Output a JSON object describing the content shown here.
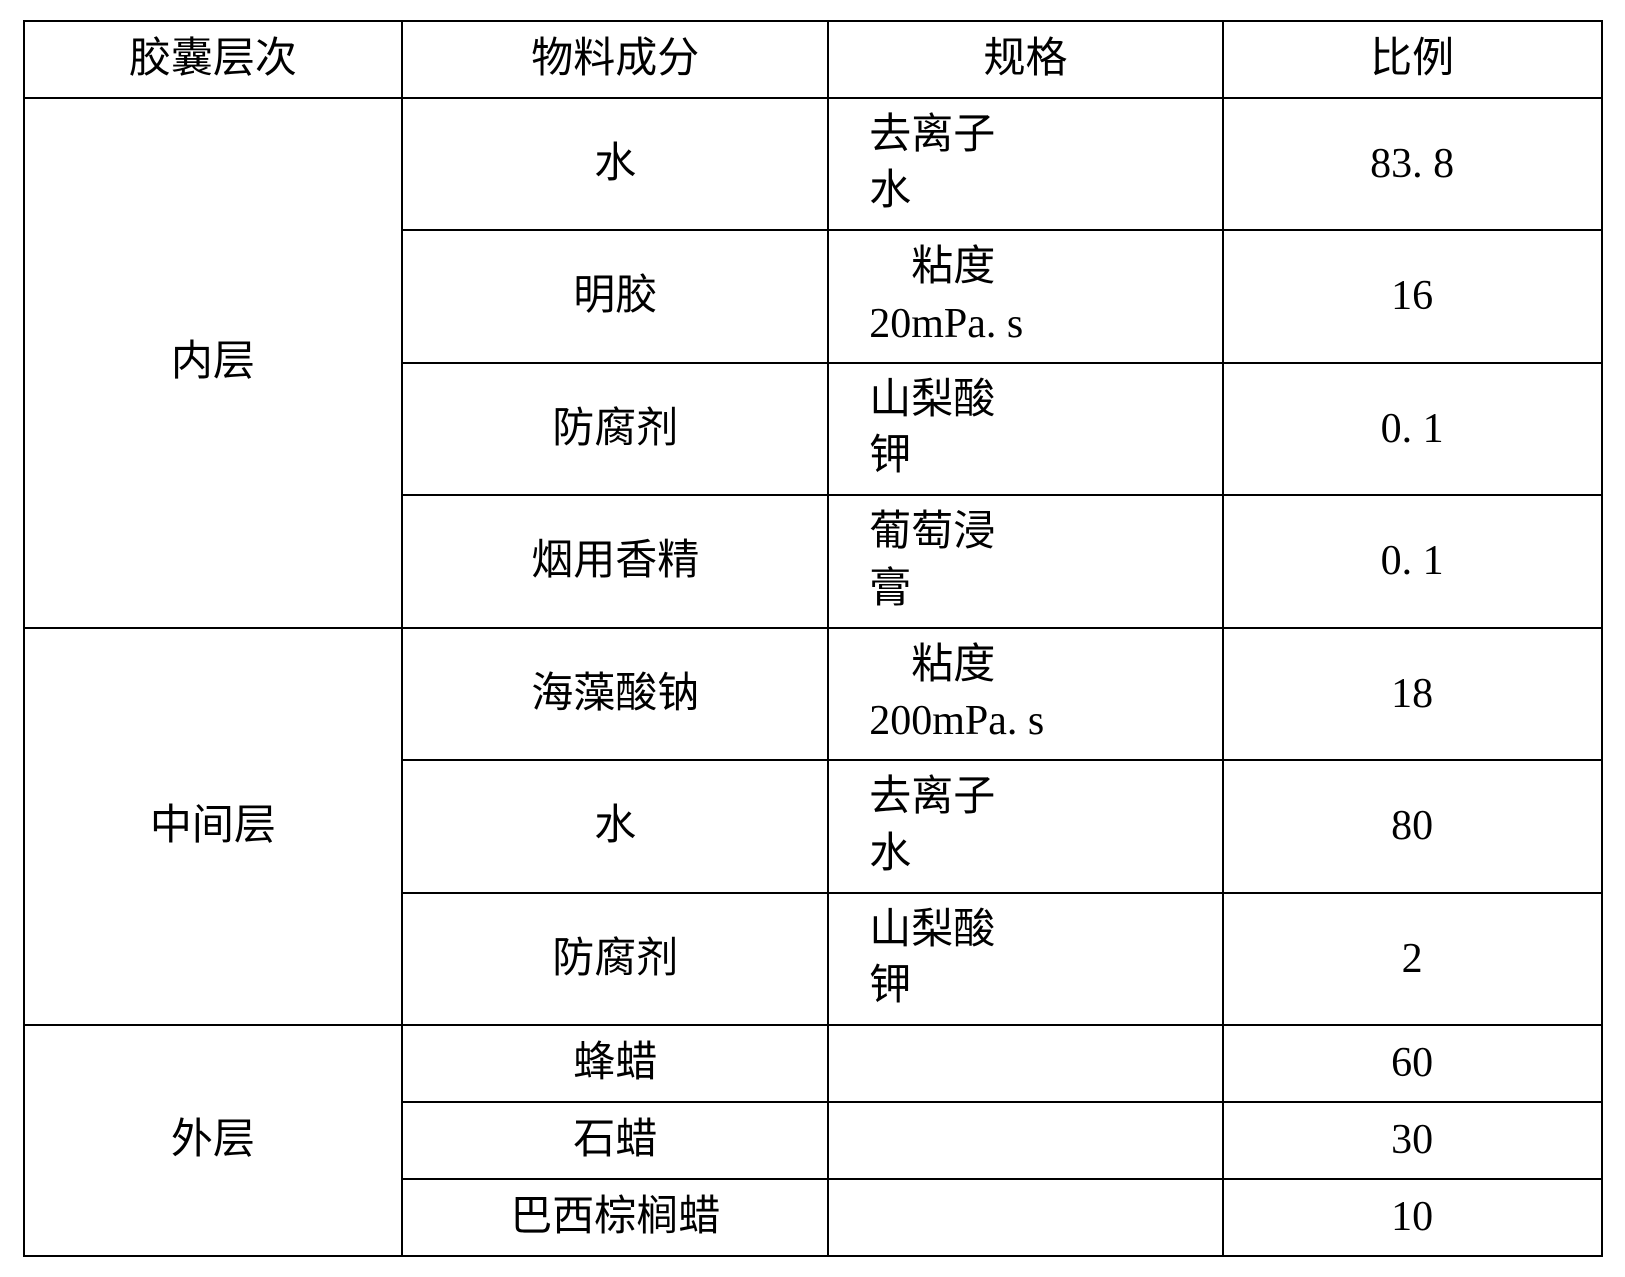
{
  "table": {
    "headers": {
      "layer": "胶囊层次",
      "material": "物料成分",
      "spec": "规格",
      "ratio": "比例"
    },
    "border_color": "#000000",
    "background_color": "#ffffff",
    "text_color": "#000000",
    "font_size": 42,
    "groups": [
      {
        "layer_label": "内层",
        "rows": [
          {
            "material": "水",
            "spec_line1": "去离子",
            "spec_line2": "水",
            "ratio": "83. 8"
          },
          {
            "material": "明胶",
            "spec_line1": "　粘度",
            "spec_line2": "20mPa. s",
            "ratio": "16"
          },
          {
            "material": "防腐剂",
            "spec_line1": "山梨酸",
            "spec_line2": "钾",
            "ratio": "0. 1"
          },
          {
            "material": "烟用香精",
            "spec_line1": "葡萄浸",
            "spec_line2": "膏",
            "ratio": "0. 1"
          }
        ]
      },
      {
        "layer_label": "中间层",
        "rows": [
          {
            "material": "海藻酸钠",
            "spec_line1": "　粘度",
            "spec_line2": "200mPa. s",
            "ratio": "18"
          },
          {
            "material": "水",
            "spec_line1": "去离子",
            "spec_line2": "水",
            "ratio": "80"
          },
          {
            "material": "防腐剂",
            "spec_line1": "山梨酸",
            "spec_line2": "钾",
            "ratio": "2"
          }
        ]
      },
      {
        "layer_label": "外层",
        "rows": [
          {
            "material": "蜂蜡",
            "spec_line1": "",
            "spec_line2": "",
            "ratio": "60"
          },
          {
            "material": "石蜡",
            "spec_line1": "",
            "spec_line2": "",
            "ratio": "30"
          },
          {
            "material": "巴西棕榈蜡",
            "spec_line1": "",
            "spec_line2": "",
            "ratio": "10"
          }
        ]
      }
    ]
  }
}
